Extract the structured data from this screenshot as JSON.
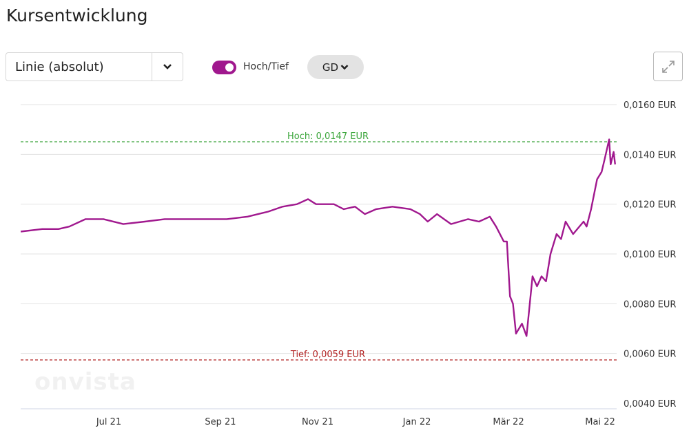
{
  "header": {
    "title": "Kursentwicklung"
  },
  "controls": {
    "chart_type_value": "Linie (absolut)",
    "toggle_label": "Hoch/Tief",
    "toggle_on": true,
    "gd_label": "GD",
    "expand_icon": "expand-arrows-icon"
  },
  "watermark": "onvista",
  "colors": {
    "line": "#a0188e",
    "high": "#3aa53a",
    "low": "#b22222",
    "grid": "#e3e3e3"
  },
  "chart_data": {
    "type": "line",
    "title": "",
    "xlabel": "",
    "ylabel": "",
    "ylim": [
      0.004,
      0.016
    ],
    "y_ticks": [
      0.004,
      0.006,
      0.008,
      0.01,
      0.012,
      0.014,
      0.016
    ],
    "y_tick_labels": [
      "0,0040 EUR",
      "0,0060 EUR",
      "0,0080 EUR",
      "0,0100 EUR",
      "0,0120 EUR",
      "0,0140 EUR",
      "0,0160 EUR"
    ],
    "x_ticks": [
      "2021-07-01",
      "2021-09-01",
      "2021-11-01",
      "2022-01-01",
      "2022-03-01",
      "2022-05-01"
    ],
    "x_tick_labels": [
      "Jul 21",
      "Sep 21",
      "Nov 21",
      "Jan 22",
      "Mär 22",
      "Mai 22"
    ],
    "grid": true,
    "high": {
      "value": 0.0147,
      "label": "Hoch: 0,0147 EUR"
    },
    "low": {
      "value": 0.0059,
      "label": "Tief: 0,0059 EUR"
    },
    "series": [
      {
        "points": [
          [
            "2021-05-13",
            0.0109
          ],
          [
            "2021-05-25",
            0.011
          ],
          [
            "2021-06-03",
            0.011
          ],
          [
            "2021-06-09",
            0.0111
          ],
          [
            "2021-06-18",
            0.0114
          ],
          [
            "2021-06-28",
            0.0114
          ],
          [
            "2021-07-09",
            0.0112
          ],
          [
            "2021-07-21",
            0.0113
          ],
          [
            "2021-08-01",
            0.0114
          ],
          [
            "2021-08-21",
            0.0114
          ],
          [
            "2021-09-05",
            0.0114
          ],
          [
            "2021-09-18",
            0.0115
          ],
          [
            "2021-10-01",
            0.0117
          ],
          [
            "2021-10-10",
            0.0119
          ],
          [
            "2021-10-19",
            0.012
          ],
          [
            "2021-10-26",
            0.0122
          ],
          [
            "2021-10-31",
            0.012
          ],
          [
            "2021-11-11",
            0.012
          ],
          [
            "2021-11-17",
            0.0118
          ],
          [
            "2021-11-24",
            0.0119
          ],
          [
            "2021-11-30",
            0.0116
          ],
          [
            "2021-12-07",
            0.0118
          ],
          [
            "2021-12-17",
            0.0119
          ],
          [
            "2021-12-28",
            0.0118
          ],
          [
            "2022-01-03",
            0.0116
          ],
          [
            "2022-01-08",
            0.0113
          ],
          [
            "2022-01-14",
            0.0116
          ],
          [
            "2022-01-23",
            0.0112
          ],
          [
            "2022-02-03",
            0.0114
          ],
          [
            "2022-02-10",
            0.0113
          ],
          [
            "2022-02-17",
            0.0115
          ],
          [
            "2022-02-21",
            0.0111
          ],
          [
            "2022-02-26",
            0.0105
          ],
          [
            "2022-02-28",
            0.0105
          ],
          [
            "2022-03-02",
            0.0083
          ],
          [
            "2022-03-04",
            0.008
          ],
          [
            "2022-03-06",
            0.0068
          ],
          [
            "2022-03-10",
            0.0072
          ],
          [
            "2022-03-13",
            0.0067
          ],
          [
            "2022-03-17",
            0.0091
          ],
          [
            "2022-03-20",
            0.0087
          ],
          [
            "2022-03-23",
            0.0091
          ],
          [
            "2022-03-26",
            0.0089
          ],
          [
            "2022-03-29",
            0.01
          ],
          [
            "2022-04-02",
            0.0108
          ],
          [
            "2022-04-05",
            0.0106
          ],
          [
            "2022-04-08",
            0.0113
          ],
          [
            "2022-04-13",
            0.0108
          ],
          [
            "2022-04-20",
            0.0113
          ],
          [
            "2022-04-22",
            0.0111
          ],
          [
            "2022-04-25",
            0.0118
          ],
          [
            "2022-04-29",
            0.013
          ],
          [
            "2022-05-02",
            0.0133
          ],
          [
            "2022-05-04",
            0.0138
          ],
          [
            "2022-05-07",
            0.0146
          ],
          [
            "2022-05-08",
            0.0136
          ],
          [
            "2022-05-10",
            0.0141
          ],
          [
            "2022-05-11",
            0.0136
          ]
        ]
      }
    ]
  }
}
